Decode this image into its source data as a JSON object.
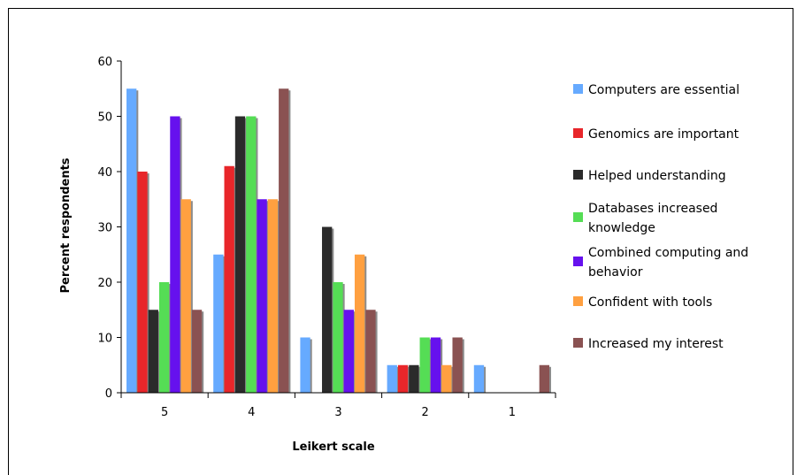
{
  "chart_data": {
    "type": "bar",
    "title": "",
    "xlabel": "Leikert scale",
    "ylabel": "Percent respondents",
    "ylim": [
      0,
      60
    ],
    "yticks": [
      0,
      10,
      20,
      30,
      40,
      50,
      60
    ],
    "categories": [
      "5",
      "4",
      "3",
      "2",
      "1"
    ],
    "legend_position": "right",
    "grid": false,
    "series": [
      {
        "name": "Computers are essential",
        "color": "#66aaff",
        "values": [
          55,
          25,
          10,
          5,
          5
        ]
      },
      {
        "name": "Genomics are important",
        "color": "#e8262a",
        "values": [
          40,
          41,
          0,
          5,
          0
        ]
      },
      {
        "name": "Helped understanding",
        "color": "#2b2b2b",
        "values": [
          15,
          50,
          30,
          5,
          0
        ]
      },
      {
        "name": "Databases increased knowledge",
        "color": "#55dd55",
        "values": [
          20,
          50,
          20,
          10,
          0
        ]
      },
      {
        "name": "Combined computing and behavior",
        "color": "#6611ee",
        "values": [
          50,
          35,
          15,
          10,
          0
        ]
      },
      {
        "name": "Confident with tools",
        "color": "#ffa040",
        "values": [
          35,
          35,
          25,
          5,
          0
        ]
      },
      {
        "name": "Increased my interest",
        "color": "#8a5252",
        "values": [
          15,
          55,
          15,
          10,
          5
        ]
      }
    ]
  }
}
